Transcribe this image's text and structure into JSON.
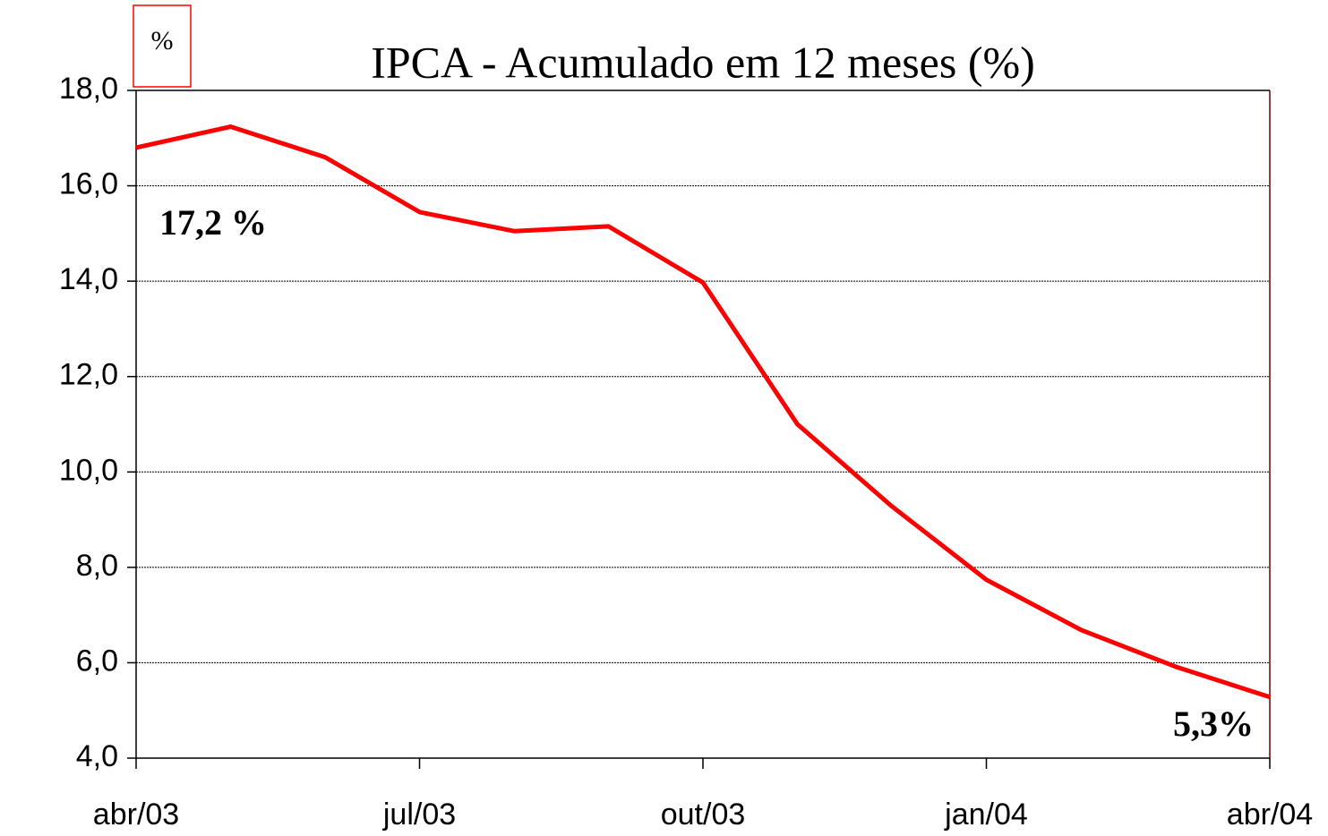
{
  "chart_data": {
    "type": "line",
    "title": "IPCA - Acumulado em 12 meses (%)",
    "ylabel": "%",
    "categories": [
      "abr/03",
      null,
      null,
      "jul/03",
      null,
      null,
      "out/03",
      null,
      null,
      "jan/04",
      null,
      null,
      "abr/04"
    ],
    "series": [
      {
        "name": "IPCA",
        "color": "#ff0000",
        "values": [
          16.8,
          17.24,
          16.6,
          15.45,
          15.05,
          15.15,
          13.97,
          11.0,
          9.28,
          7.74,
          6.69,
          5.92,
          5.28
        ]
      }
    ],
    "annotations": [
      "17,2 %",
      "5,3%"
    ],
    "ylim": [
      4,
      18
    ],
    "yticks": [
      {
        "value": 4,
        "label": "4,0"
      },
      {
        "value": 6,
        "label": "6,0"
      },
      {
        "value": 8,
        "label": "8,0"
      },
      {
        "value": 10,
        "label": "10,0"
      },
      {
        "value": 12,
        "label": "12,0"
      },
      {
        "value": 14,
        "label": "14,0"
      },
      {
        "value": 16,
        "label": "16,0"
      },
      {
        "value": 18,
        "label": "18,0"
      }
    ],
    "grid": true
  }
}
